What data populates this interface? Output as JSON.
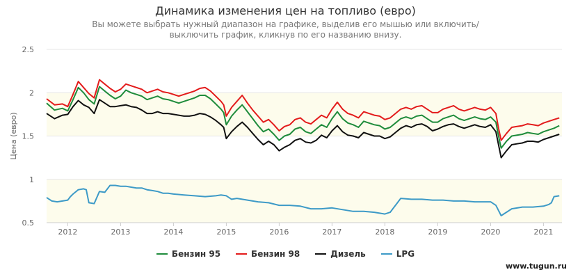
{
  "header": {
    "title": "Динамика изменения цен на топливо (евро)",
    "subtitle": "Вы можете выбрать нужный диапазон на графике, выделив его мышью или включить/выключить график, кликнув по его названию внизу."
  },
  "watermark": "www.tugun.ru",
  "chart_data": {
    "type": "line",
    "ylabel": "Цена (евро)",
    "ylim": [
      0.5,
      2.5
    ],
    "yticks": [
      "0.5",
      "1",
      "1.5",
      "2",
      "2.5"
    ],
    "xlim": [
      2011.6,
      2021.35
    ],
    "xticks": [
      "2012",
      "2013",
      "2014",
      "2015",
      "2016",
      "2017",
      "2018",
      "2019",
      "2020",
      "2021"
    ],
    "plot_bands": [
      [
        0.5,
        1
      ],
      [
        1.5,
        2
      ]
    ],
    "band_color": "#fdfcec",
    "legend_position": "bottom",
    "series": [
      {
        "name": "Бензин 95",
        "color": "#1f8c3c",
        "x": [
          2011.6,
          2011.75,
          2011.9,
          2012.0,
          2012.1,
          2012.2,
          2012.3,
          2012.4,
          2012.5,
          2012.6,
          2012.7,
          2012.8,
          2012.9,
          2013.0,
          2013.1,
          2013.2,
          2013.3,
          2013.4,
          2013.5,
          2013.6,
          2013.7,
          2013.8,
          2013.9,
          2014.0,
          2014.1,
          2014.2,
          2014.3,
          2014.4,
          2014.5,
          2014.6,
          2014.7,
          2014.8,
          2014.9,
          2014.95,
          2015.0,
          2015.1,
          2015.2,
          2015.3,
          2015.4,
          2015.5,
          2015.6,
          2015.7,
          2015.8,
          2015.9,
          2016.0,
          2016.1,
          2016.2,
          2016.3,
          2016.4,
          2016.5,
          2016.6,
          2016.7,
          2016.8,
          2016.9,
          2017.0,
          2017.1,
          2017.2,
          2017.3,
          2017.4,
          2017.5,
          2017.6,
          2017.7,
          2017.8,
          2017.9,
          2018.0,
          2018.1,
          2018.2,
          2018.3,
          2018.4,
          2018.5,
          2018.6,
          2018.7,
          2018.8,
          2018.9,
          2019.0,
          2019.1,
          2019.2,
          2019.3,
          2019.4,
          2019.5,
          2019.6,
          2019.7,
          2019.8,
          2019.9,
          2020.0,
          2020.1,
          2020.15,
          2020.2,
          2020.3,
          2020.4,
          2020.5,
          2020.6,
          2020.7,
          2020.8,
          2020.9,
          2021.0,
          2021.1,
          2021.2,
          2021.3
        ],
        "y": [
          1.88,
          1.8,
          1.82,
          1.79,
          1.92,
          2.06,
          2.0,
          1.92,
          1.87,
          2.07,
          2.02,
          1.97,
          1.93,
          1.96,
          2.03,
          2.0,
          1.98,
          1.96,
          1.92,
          1.94,
          1.96,
          1.93,
          1.92,
          1.9,
          1.88,
          1.9,
          1.92,
          1.94,
          1.97,
          1.97,
          1.93,
          1.87,
          1.81,
          1.77,
          1.63,
          1.73,
          1.8,
          1.86,
          1.78,
          1.7,
          1.62,
          1.55,
          1.58,
          1.52,
          1.45,
          1.5,
          1.52,
          1.58,
          1.6,
          1.55,
          1.53,
          1.58,
          1.63,
          1.6,
          1.7,
          1.78,
          1.7,
          1.65,
          1.63,
          1.6,
          1.67,
          1.65,
          1.63,
          1.62,
          1.58,
          1.6,
          1.65,
          1.7,
          1.72,
          1.7,
          1.73,
          1.74,
          1.7,
          1.66,
          1.66,
          1.7,
          1.72,
          1.74,
          1.7,
          1.68,
          1.7,
          1.72,
          1.7,
          1.69,
          1.72,
          1.66,
          1.5,
          1.36,
          1.44,
          1.5,
          1.51,
          1.52,
          1.54,
          1.53,
          1.52,
          1.55,
          1.57,
          1.59,
          1.62
        ]
      },
      {
        "name": "Бензин 98",
        "color": "#e31b1b",
        "x": [
          2011.6,
          2011.75,
          2011.9,
          2012.0,
          2012.1,
          2012.2,
          2012.3,
          2012.4,
          2012.5,
          2012.6,
          2012.7,
          2012.8,
          2012.9,
          2013.0,
          2013.1,
          2013.2,
          2013.3,
          2013.4,
          2013.5,
          2013.6,
          2013.7,
          2013.8,
          2013.9,
          2014.0,
          2014.1,
          2014.2,
          2014.3,
          2014.4,
          2014.5,
          2014.6,
          2014.7,
          2014.8,
          2014.9,
          2014.95,
          2015.0,
          2015.1,
          2015.2,
          2015.3,
          2015.4,
          2015.5,
          2015.6,
          2015.7,
          2015.8,
          2015.9,
          2016.0,
          2016.1,
          2016.2,
          2016.3,
          2016.4,
          2016.5,
          2016.6,
          2016.7,
          2016.8,
          2016.9,
          2017.0,
          2017.1,
          2017.2,
          2017.3,
          2017.4,
          2017.5,
          2017.6,
          2017.7,
          2017.8,
          2017.9,
          2018.0,
          2018.1,
          2018.2,
          2018.3,
          2018.4,
          2018.5,
          2018.6,
          2018.7,
          2018.8,
          2018.9,
          2019.0,
          2019.1,
          2019.2,
          2019.3,
          2019.4,
          2019.5,
          2019.6,
          2019.7,
          2019.8,
          2019.9,
          2020.0,
          2020.1,
          2020.15,
          2020.2,
          2020.3,
          2020.4,
          2020.5,
          2020.6,
          2020.7,
          2020.8,
          2020.9,
          2021.0,
          2021.1,
          2021.2,
          2021.3
        ],
        "y": [
          1.93,
          1.86,
          1.87,
          1.84,
          1.98,
          2.13,
          2.06,
          1.99,
          1.94,
          2.15,
          2.1,
          2.05,
          2.01,
          2.04,
          2.1,
          2.08,
          2.06,
          2.04,
          2.0,
          2.02,
          2.04,
          2.01,
          2.0,
          1.98,
          1.96,
          1.98,
          2.0,
          2.02,
          2.05,
          2.06,
          2.02,
          1.96,
          1.9,
          1.86,
          1.73,
          1.83,
          1.9,
          1.97,
          1.88,
          1.8,
          1.73,
          1.66,
          1.69,
          1.63,
          1.56,
          1.61,
          1.63,
          1.69,
          1.71,
          1.66,
          1.64,
          1.69,
          1.74,
          1.71,
          1.81,
          1.89,
          1.81,
          1.76,
          1.74,
          1.71,
          1.78,
          1.76,
          1.74,
          1.73,
          1.69,
          1.71,
          1.76,
          1.81,
          1.83,
          1.81,
          1.84,
          1.85,
          1.81,
          1.77,
          1.77,
          1.81,
          1.83,
          1.85,
          1.81,
          1.79,
          1.81,
          1.83,
          1.81,
          1.8,
          1.83,
          1.76,
          1.59,
          1.45,
          1.53,
          1.6,
          1.61,
          1.62,
          1.64,
          1.63,
          1.62,
          1.65,
          1.67,
          1.69,
          1.71
        ]
      },
      {
        "name": "Дизель",
        "color": "#111111",
        "x": [
          2011.6,
          2011.75,
          2011.9,
          2012.0,
          2012.1,
          2012.2,
          2012.3,
          2012.4,
          2012.5,
          2012.6,
          2012.7,
          2012.8,
          2012.9,
          2013.0,
          2013.1,
          2013.2,
          2013.3,
          2013.4,
          2013.5,
          2013.6,
          2013.7,
          2013.8,
          2013.9,
          2014.0,
          2014.1,
          2014.2,
          2014.3,
          2014.4,
          2014.5,
          2014.6,
          2014.7,
          2014.8,
          2014.9,
          2014.95,
          2015.0,
          2015.1,
          2015.2,
          2015.3,
          2015.4,
          2015.5,
          2015.6,
          2015.7,
          2015.8,
          2015.9,
          2016.0,
          2016.1,
          2016.2,
          2016.3,
          2016.4,
          2016.5,
          2016.6,
          2016.7,
          2016.8,
          2016.9,
          2017.0,
          2017.1,
          2017.2,
          2017.3,
          2017.4,
          2017.5,
          2017.6,
          2017.7,
          2017.8,
          2017.9,
          2018.0,
          2018.1,
          2018.2,
          2018.3,
          2018.4,
          2018.5,
          2018.6,
          2018.7,
          2018.8,
          2018.9,
          2019.0,
          2019.1,
          2019.2,
          2019.3,
          2019.4,
          2019.5,
          2019.6,
          2019.7,
          2019.8,
          2019.9,
          2020.0,
          2020.1,
          2020.15,
          2020.2,
          2020.3,
          2020.4,
          2020.5,
          2020.6,
          2020.7,
          2020.8,
          2020.9,
          2021.0,
          2021.1,
          2021.2,
          2021.3
        ],
        "y": [
          1.76,
          1.7,
          1.74,
          1.75,
          1.84,
          1.91,
          1.86,
          1.83,
          1.76,
          1.92,
          1.88,
          1.84,
          1.84,
          1.85,
          1.86,
          1.84,
          1.83,
          1.8,
          1.76,
          1.76,
          1.78,
          1.76,
          1.76,
          1.75,
          1.74,
          1.73,
          1.73,
          1.74,
          1.76,
          1.75,
          1.72,
          1.68,
          1.63,
          1.6,
          1.47,
          1.55,
          1.61,
          1.66,
          1.6,
          1.53,
          1.46,
          1.4,
          1.44,
          1.4,
          1.33,
          1.37,
          1.4,
          1.45,
          1.47,
          1.43,
          1.42,
          1.45,
          1.51,
          1.48,
          1.56,
          1.62,
          1.55,
          1.51,
          1.5,
          1.48,
          1.54,
          1.52,
          1.5,
          1.5,
          1.47,
          1.49,
          1.54,
          1.59,
          1.62,
          1.6,
          1.63,
          1.64,
          1.61,
          1.56,
          1.58,
          1.61,
          1.63,
          1.64,
          1.61,
          1.59,
          1.61,
          1.63,
          1.61,
          1.6,
          1.63,
          1.55,
          1.4,
          1.25,
          1.33,
          1.4,
          1.41,
          1.42,
          1.44,
          1.44,
          1.43,
          1.46,
          1.48,
          1.5,
          1.52
        ]
      },
      {
        "name": "LPG",
        "color": "#3d9ac7",
        "x": [
          2011.6,
          2011.7,
          2011.8,
          2011.9,
          2012.0,
          2012.05,
          2012.1,
          2012.2,
          2012.3,
          2012.35,
          2012.4,
          2012.5,
          2012.6,
          2012.7,
          2012.8,
          2012.9,
          2013.0,
          2013.1,
          2013.2,
          2013.3,
          2013.4,
          2013.5,
          2013.6,
          2013.7,
          2013.8,
          2013.9,
          2014.0,
          2014.2,
          2014.4,
          2014.6,
          2014.8,
          2014.9,
          2015.0,
          2015.1,
          2015.2,
          2015.4,
          2015.6,
          2015.8,
          2016.0,
          2016.2,
          2016.4,
          2016.6,
          2016.8,
          2017.0,
          2017.2,
          2017.4,
          2017.6,
          2017.8,
          2018.0,
          2018.1,
          2018.2,
          2018.3,
          2018.5,
          2018.7,
          2018.9,
          2019.1,
          2019.3,
          2019.5,
          2019.7,
          2019.9,
          2020.0,
          2020.1,
          2020.15,
          2020.2,
          2020.4,
          2020.6,
          2020.8,
          2021.0,
          2021.1,
          2021.15,
          2021.2,
          2021.3
        ],
        "y": [
          0.79,
          0.75,
          0.74,
          0.75,
          0.76,
          0.8,
          0.83,
          0.88,
          0.89,
          0.88,
          0.73,
          0.72,
          0.86,
          0.85,
          0.93,
          0.93,
          0.92,
          0.92,
          0.91,
          0.9,
          0.9,
          0.88,
          0.87,
          0.86,
          0.84,
          0.84,
          0.83,
          0.82,
          0.81,
          0.8,
          0.81,
          0.82,
          0.81,
          0.77,
          0.78,
          0.76,
          0.74,
          0.73,
          0.7,
          0.7,
          0.69,
          0.66,
          0.66,
          0.67,
          0.65,
          0.63,
          0.63,
          0.62,
          0.6,
          0.62,
          0.7,
          0.78,
          0.77,
          0.77,
          0.76,
          0.76,
          0.75,
          0.75,
          0.74,
          0.74,
          0.74,
          0.7,
          0.64,
          0.58,
          0.66,
          0.68,
          0.68,
          0.69,
          0.71,
          0.73,
          0.8,
          0.81
        ]
      }
    ]
  }
}
